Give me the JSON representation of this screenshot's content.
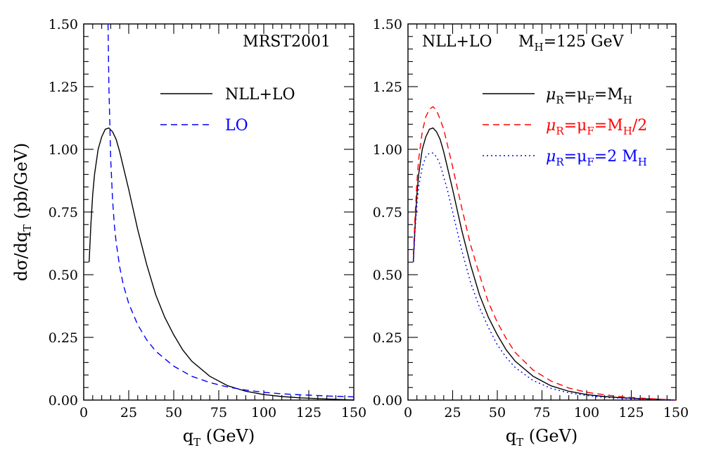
{
  "chart_data": [
    {
      "type": "line",
      "title": "MRST2001",
      "xlabel": "q",
      "xlabel_sub": "T",
      "xlabel_unit": "(GeV)",
      "ylabel": "dσ/dq",
      "ylabel_sub": "T",
      "ylabel_unit": "(pb/GeV)",
      "xlim": [
        0,
        150
      ],
      "ylim": [
        0,
        1.5
      ],
      "xticks": [
        "0",
        "25",
        "50",
        "75",
        "100",
        "125",
        "150"
      ],
      "yticks": [
        "0.00",
        "0.25",
        "0.50",
        "0.75",
        "1.00",
        "1.25",
        "1.50"
      ],
      "grid": false,
      "legend_position": "top-right",
      "series": [
        {
          "name": "NLL+LO",
          "color": "#000000",
          "dash": "solid",
          "x": [
            3,
            4,
            5,
            6,
            8,
            10,
            12,
            14,
            16,
            18,
            20,
            22,
            25,
            30,
            35,
            40,
            45,
            50,
            55,
            60,
            70,
            80,
            90,
            100,
            110,
            120,
            130,
            140,
            150
          ],
          "y": [
            0.55,
            0.7,
            0.82,
            0.9,
            1.0,
            1.05,
            1.08,
            1.085,
            1.07,
            1.04,
            0.99,
            0.93,
            0.84,
            0.68,
            0.54,
            0.42,
            0.33,
            0.26,
            0.2,
            0.155,
            0.095,
            0.057,
            0.035,
            0.022,
            0.014,
            0.009,
            0.006,
            0.003,
            0.0
          ]
        },
        {
          "name": "LO",
          "color": "#0000ff",
          "dash": "dashed",
          "x": [
            13.5,
            14,
            15,
            16,
            17,
            18,
            20,
            22,
            25,
            30,
            35,
            40,
            50,
            60,
            70,
            80,
            90,
            100,
            110,
            120,
            130,
            140,
            150
          ],
          "y": [
            1.5,
            1.25,
            0.96,
            0.8,
            0.7,
            0.63,
            0.53,
            0.46,
            0.385,
            0.3,
            0.24,
            0.195,
            0.135,
            0.095,
            0.07,
            0.052,
            0.04,
            0.031,
            0.025,
            0.021,
            0.018,
            0.015,
            0.013
          ]
        }
      ]
    },
    {
      "type": "line",
      "title": "NLL+LO",
      "title_right": "M",
      "title_right_sub": "H",
      "title_right_rest": "=125 GeV",
      "xlabel": "q",
      "xlabel_sub": "T",
      "xlabel_unit": "(GeV)",
      "xlim": [
        0,
        150
      ],
      "ylim": [
        0,
        1.5
      ],
      "xticks": [
        "0",
        "25",
        "50",
        "75",
        "100",
        "125",
        "150"
      ],
      "yticks": [
        "0.00",
        "0.25",
        "0.50",
        "0.75",
        "1.00",
        "1.25",
        "1.50"
      ],
      "grid": false,
      "legend_position": "top-right",
      "series": [
        {
          "name": "μR=μF=MH",
          "legend_parts": [
            "μ",
            "R",
            "=μ",
            "F",
            "=M",
            "H",
            ""
          ],
          "color": "#000000",
          "dash": "solid",
          "x": [
            3,
            4,
            5,
            6,
            8,
            10,
            12,
            14,
            16,
            18,
            20,
            22,
            25,
            30,
            35,
            40,
            45,
            50,
            55,
            60,
            70,
            80,
            90,
            100,
            110,
            120,
            130,
            140,
            150
          ],
          "y": [
            0.55,
            0.7,
            0.82,
            0.9,
            1.0,
            1.05,
            1.08,
            1.085,
            1.07,
            1.04,
            0.99,
            0.93,
            0.84,
            0.68,
            0.54,
            0.42,
            0.33,
            0.26,
            0.2,
            0.155,
            0.095,
            0.057,
            0.035,
            0.022,
            0.014,
            0.009,
            0.006,
            0.003,
            0.0
          ]
        },
        {
          "name": "μR=μF=MH/2",
          "legend_parts": [
            "μ",
            "R",
            "=μ",
            "F",
            "=M",
            "H",
            "/2"
          ],
          "color": "#ff0000",
          "dash": "dashed",
          "x": [
            3,
            4,
            5,
            6,
            8,
            10,
            12,
            14,
            16,
            18,
            20,
            22,
            25,
            30,
            35,
            40,
            45,
            50,
            55,
            60,
            70,
            80,
            90,
            100,
            110,
            120,
            130,
            140,
            150
          ],
          "y": [
            0.58,
            0.74,
            0.87,
            0.96,
            1.07,
            1.13,
            1.16,
            1.17,
            1.155,
            1.12,
            1.08,
            1.02,
            0.93,
            0.77,
            0.62,
            0.5,
            0.39,
            0.31,
            0.245,
            0.19,
            0.12,
            0.076,
            0.048,
            0.031,
            0.021,
            0.013,
            0.008,
            0.004,
            0.0
          ]
        },
        {
          "name": "μR=μF=2 MH",
          "legend_parts": [
            "μ",
            "R",
            "=μ",
            "F",
            "=2 M",
            "H",
            ""
          ],
          "color": "#0000ff",
          "dash": "dotted",
          "x": [
            3,
            4,
            5,
            6,
            8,
            10,
            12,
            14,
            16,
            18,
            20,
            22,
            25,
            30,
            35,
            40,
            45,
            50,
            55,
            60,
            70,
            80,
            90,
            100,
            110,
            120,
            130,
            140,
            150
          ],
          "y": [
            0.55,
            0.68,
            0.78,
            0.85,
            0.93,
            0.97,
            0.985,
            0.985,
            0.97,
            0.94,
            0.89,
            0.84,
            0.75,
            0.6,
            0.47,
            0.37,
            0.29,
            0.22,
            0.17,
            0.13,
            0.078,
            0.047,
            0.029,
            0.018,
            0.011,
            0.007,
            0.004,
            0.002,
            0.0
          ]
        }
      ]
    }
  ]
}
